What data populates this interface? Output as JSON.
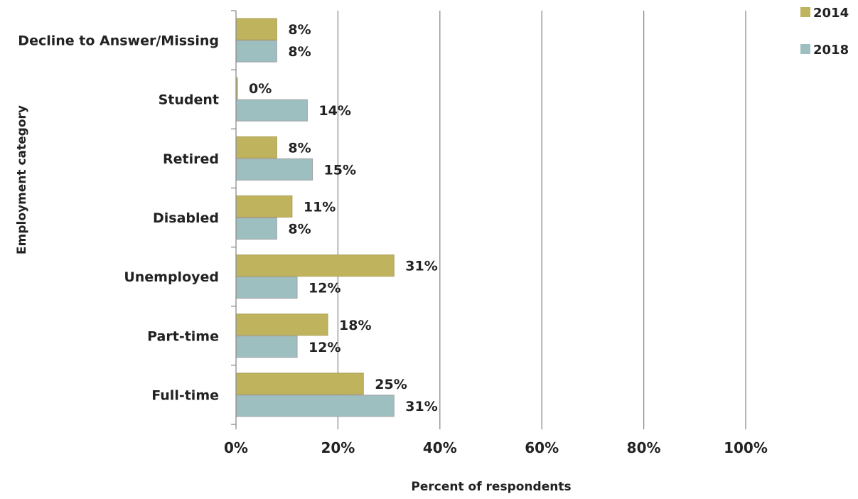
{
  "chart_data": {
    "type": "bar",
    "orientation": "horizontal",
    "categories": [
      "Decline to Answer/Missing",
      "Student",
      "Retired",
      "Disabled",
      "Unemployed",
      "Part-time",
      "Full-time"
    ],
    "series": [
      {
        "name": "2014",
        "color": "#bfb35e",
        "values": [
          8,
          0,
          8,
          11,
          31,
          18,
          25
        ],
        "labels": [
          "8%",
          "0%",
          "8%",
          "11%",
          "31%",
          "18%",
          "25%"
        ]
      },
      {
        "name": "2018",
        "color": "#9ebfbf",
        "values": [
          8,
          14,
          15,
          8,
          12,
          12,
          31
        ],
        "labels": [
          "8%",
          "14%",
          "15%",
          "8%",
          "12%",
          "12%",
          "31%"
        ]
      }
    ],
    "xlabel": "Percent of respondents",
    "ylabel": "Employment category",
    "xlim": [
      0,
      100
    ],
    "xticks": [
      0,
      20,
      40,
      60,
      80,
      100
    ],
    "xtick_labels": [
      "0%",
      "20%",
      "40%",
      "60%",
      "80%",
      "100%"
    ],
    "grid": "vertical",
    "legend_position": "top-right"
  }
}
